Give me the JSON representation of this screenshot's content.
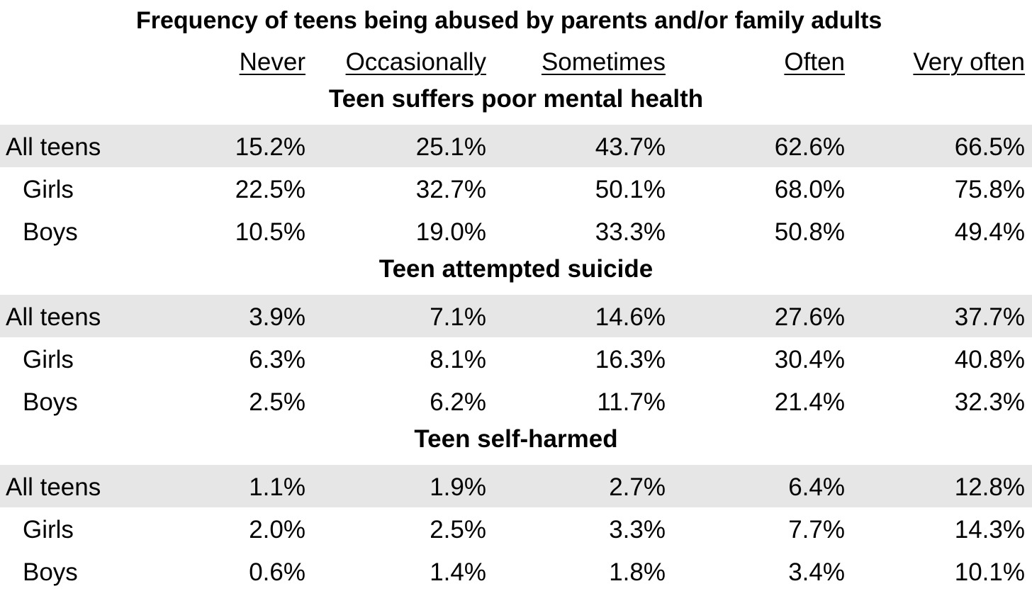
{
  "chart_data": {
    "type": "table",
    "title": "Frequency of teens being abused by parents and/or family adults",
    "columns": [
      "Never",
      "Occasionally",
      "Sometimes",
      "Often",
      "Very often"
    ],
    "sections": [
      {
        "title": "Teen suffers poor mental health",
        "rows": [
          {
            "label": "All teens",
            "values": [
              "15.2%",
              "25.1%",
              "43.7%",
              "62.6%",
              "66.5%"
            ]
          },
          {
            "label": "Girls",
            "values": [
              "22.5%",
              "32.7%",
              "50.1%",
              "68.0%",
              "75.8%"
            ]
          },
          {
            "label": "Boys",
            "values": [
              "10.5%",
              "19.0%",
              "33.3%",
              "50.8%",
              "49.4%"
            ]
          }
        ]
      },
      {
        "title": "Teen attempted suicide",
        "rows": [
          {
            "label": "All teens",
            "values": [
              "3.9%",
              "7.1%",
              "14.6%",
              "27.6%",
              "37.7%"
            ]
          },
          {
            "label": "Girls",
            "values": [
              "6.3%",
              "8.1%",
              "16.3%",
              "30.4%",
              "40.8%"
            ]
          },
          {
            "label": "Boys",
            "values": [
              "2.5%",
              "6.2%",
              "11.7%",
              "21.4%",
              "32.3%"
            ]
          }
        ]
      },
      {
        "title": "Teen self-harmed",
        "rows": [
          {
            "label": "All teens",
            "values": [
              "1.1%",
              "1.9%",
              "2.7%",
              "6.4%",
              "12.8%"
            ]
          },
          {
            "label": "Girls",
            "values": [
              "2.0%",
              "2.5%",
              "3.3%",
              "7.7%",
              "14.3%"
            ]
          },
          {
            "label": "Boys",
            "values": [
              "0.6%",
              "1.4%",
              "1.8%",
              "3.4%",
              "10.1%"
            ]
          }
        ]
      }
    ]
  }
}
